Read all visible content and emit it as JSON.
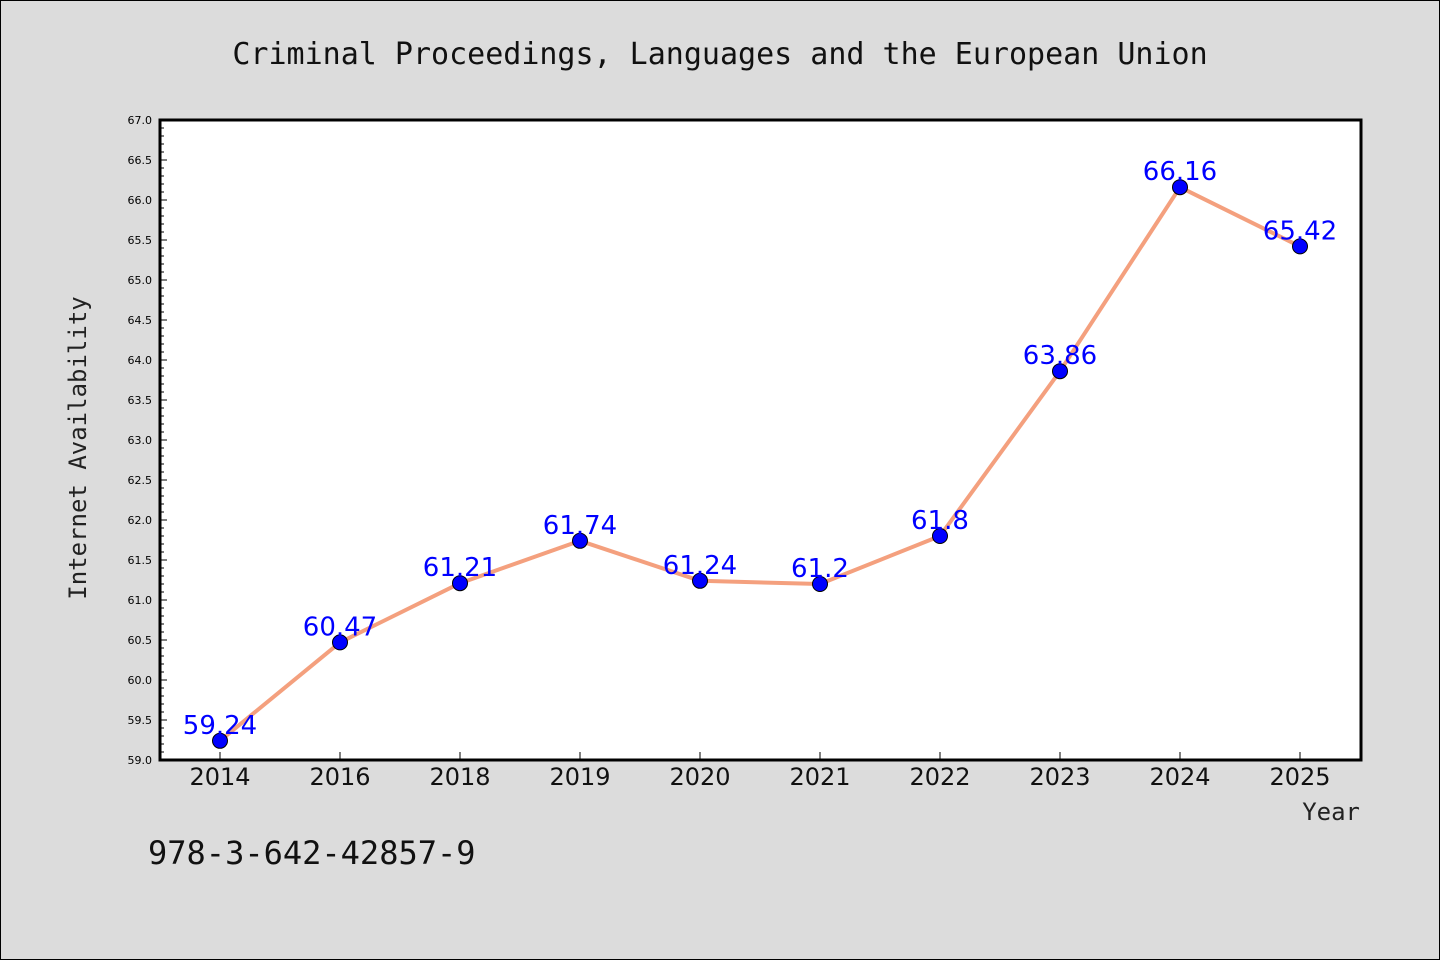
{
  "chart_data": {
    "type": "line",
    "title": "Criminal Proceedings, Languages and the European Union",
    "xlabel": "Year",
    "ylabel": "Internet Availability",
    "categories": [
      "2014",
      "2016",
      "2018",
      "2019",
      "2020",
      "2021",
      "2022",
      "2023",
      "2024",
      "2025"
    ],
    "values": [
      59.24,
      60.47,
      61.21,
      61.74,
      61.24,
      61.2,
      61.8,
      63.86,
      66.16,
      65.42
    ],
    "data_labels": [
      "59.24",
      "60.47",
      "61.21",
      "61.74",
      "61.24",
      "61.2",
      "61.8",
      "63.86",
      "66.16",
      "65.42"
    ],
    "ylim": [
      59.0,
      67.0
    ],
    "ytick_step": 0.5,
    "grid": false,
    "line_color": "#f4a07e",
    "marker_color": "#0000ff",
    "label_color": "#0000ff",
    "background": "#dcdcdc",
    "plot_background": "#ffffff"
  },
  "footer_text": "978-3-642-42857-9"
}
